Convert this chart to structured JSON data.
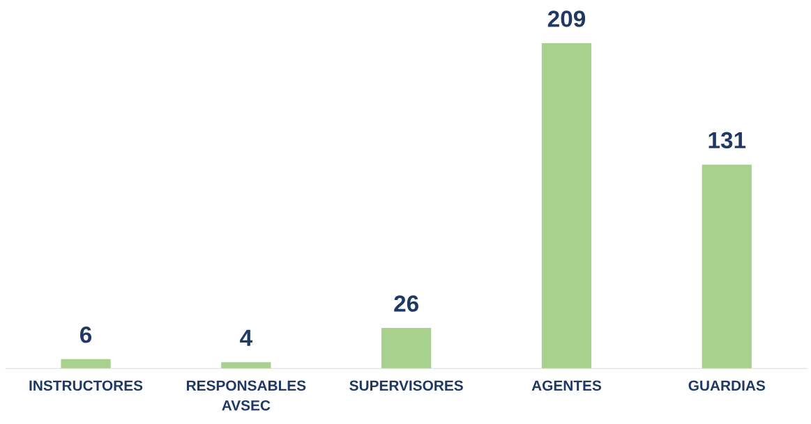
{
  "chart_data": {
    "type": "bar",
    "categories": [
      "INSTRUCTORES",
      "RESPONSABLES\nAVSEC",
      "SUPERVISORES",
      "AGENTES",
      "GUARDIAS"
    ],
    "values": [
      6,
      4,
      26,
      209,
      131
    ],
    "color": "#a9d18e",
    "data_labels": true,
    "grid": false,
    "legend": false
  }
}
